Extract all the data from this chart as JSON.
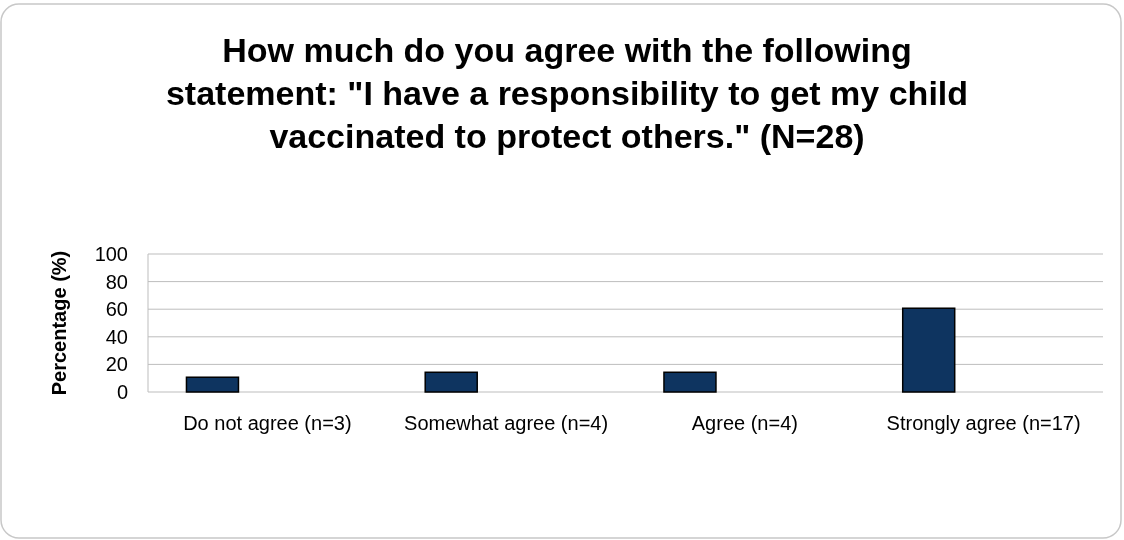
{
  "chart_data": {
    "type": "bar",
    "title": "How much do you agree with the following statement: \"I have a responsibility to get my child vaccinated to protect others.\" (N=28)",
    "ylabel": "Percentage (%)",
    "categories": [
      "Do not agree (n=3)",
      "Somewhat agree (n=4)",
      "Agree (n=4)",
      "Strongly agree (n=17)"
    ],
    "values": [
      10.7,
      14.3,
      14.3,
      60.7
    ],
    "color": "#0e3460",
    "ylim": [
      0,
      100
    ],
    "yticks": [
      0,
      20,
      40,
      60,
      80,
      100
    ],
    "grid": "y"
  }
}
